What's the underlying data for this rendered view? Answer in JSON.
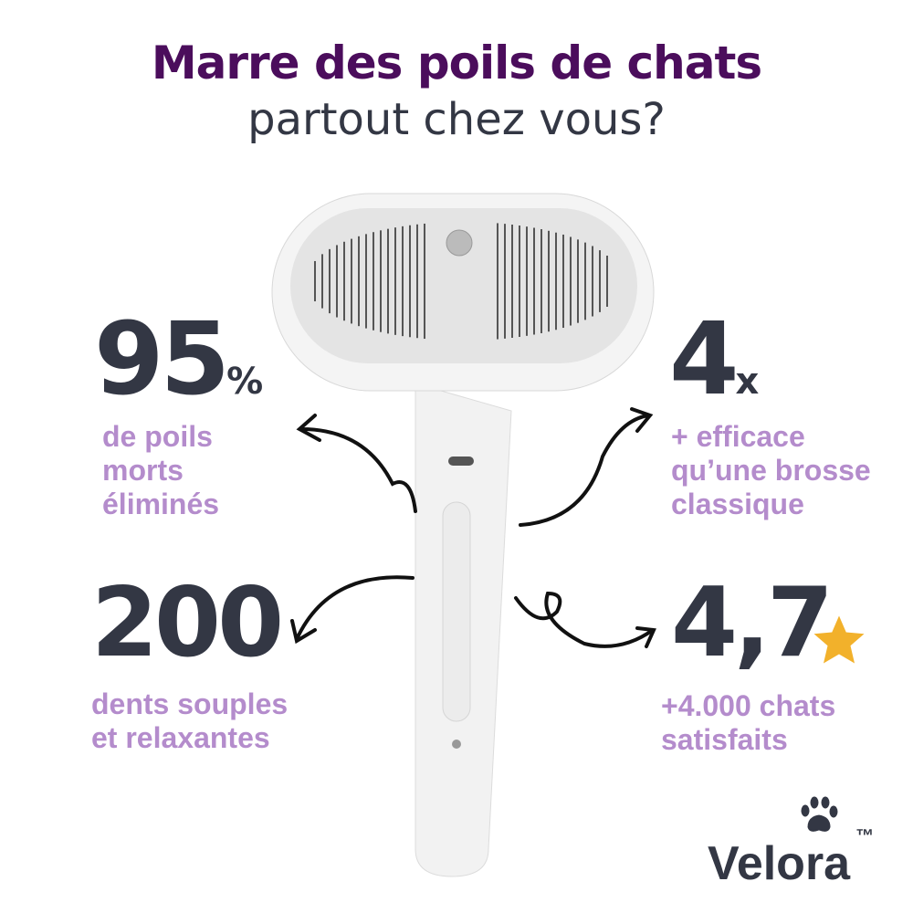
{
  "headline": {
    "line1": "Marre des poils de chats",
    "line2": "partout chez vous?"
  },
  "stats": [
    {
      "value": "95",
      "unit": "%",
      "caption": [
        "de poils",
        "morts",
        "éliminés"
      ]
    },
    {
      "value": "4",
      "unit": "x",
      "caption": [
        "+ efficace",
        "qu’une brosse",
        "classique"
      ]
    },
    {
      "value": "200",
      "unit": "",
      "caption": [
        "dents souples",
        "et relaxantes"
      ]
    },
    {
      "value": "4,7",
      "unit": "",
      "icon": "star-icon",
      "caption": [
        "+4.000 chats",
        "satisfaits"
      ]
    }
  ],
  "brand": {
    "name": "Velora",
    "trademark": "™",
    "icon": "paw-icon"
  },
  "colors": {
    "title": "#4b0d5c",
    "dark": "#333744",
    "accent": "#b48ccc",
    "star": "#f2b12b"
  }
}
